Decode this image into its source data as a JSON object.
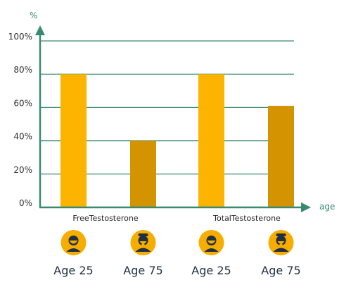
{
  "chart_data": {
    "type": "bar",
    "y_unit_label": "%",
    "x_unit_label": "age",
    "ylim": [
      0,
      100
    ],
    "y_ticks": [
      "100%",
      "80%",
      "60%",
      "40%",
      "20%",
      "0%"
    ],
    "grid": true,
    "groups": [
      "FreeTestosterone",
      "TotalTestosterone"
    ],
    "bars": [
      {
        "group": "FreeTestosterone",
        "label": "Age 25",
        "value": 80,
        "color": "#FDB400",
        "icon": "young-man-icon"
      },
      {
        "group": "FreeTestosterone",
        "label": "Age 75",
        "value": 40,
        "color": "#D49300",
        "icon": "old-man-icon"
      },
      {
        "group": "TotalTestosterone",
        "label": "Age 25",
        "value": 80,
        "color": "#FDB400",
        "icon": "young-man-icon"
      },
      {
        "group": "TotalTestosterone",
        "label": "Age 75",
        "value": 61,
        "color": "#D49300",
        "icon": "old-man-icon"
      }
    ]
  },
  "colors": {
    "axis": "#3a8a70",
    "grid": "#3a8a70",
    "young": "#FDB400",
    "old": "#D49300",
    "icon_bg": "#F7AD00",
    "icon_fg": "#1f2f45"
  }
}
